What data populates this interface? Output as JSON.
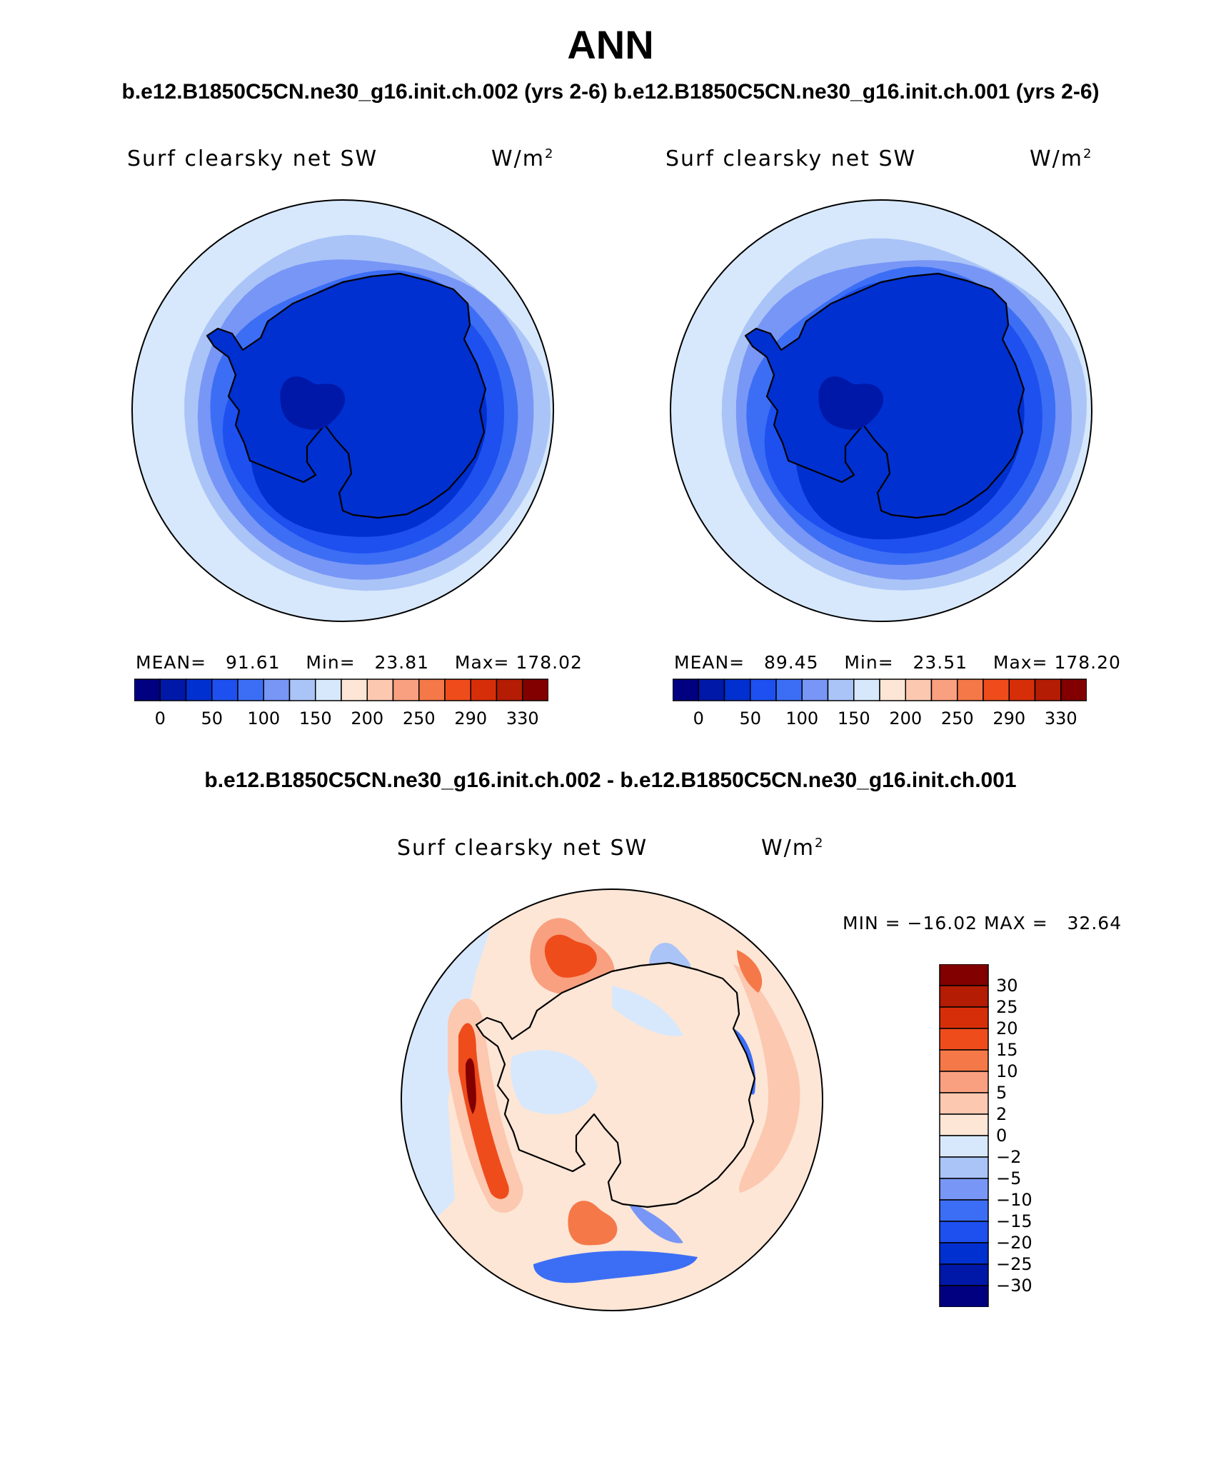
{
  "header": {
    "title": "ANN",
    "case_titles": "b.e12.B1850C5CN.ne30_g16.init.ch.002 (yrs 2-6) b.e12.B1850C5CN.ne30_g16.init.ch.001 (yrs 2-6)",
    "diff_title": "b.e12.B1850C5CN.ne30_g16.init.ch.002 - b.e12.B1850C5CN.ne30_g16.init.ch.001"
  },
  "colors": {
    "abs_scale": [
      "#000080",
      "#0018a8",
      "#0030d0",
      "#1e50f0",
      "#3c6ef5",
      "#7896f5",
      "#aac4f8",
      "#d7e8fc",
      "#fde6d6",
      "#fcc8b0",
      "#f9a080",
      "#f57848",
      "#ef4c1c",
      "#d72e0a",
      "#b41c04",
      "#820000"
    ],
    "diff_scale": [
      "#820000",
      "#b41c04",
      "#d72e0a",
      "#ef4c1c",
      "#f57848",
      "#f9a080",
      "#fcc8b0",
      "#fde6d6",
      "#d7e8fc",
      "#aac4f8",
      "#7896f5",
      "#3c6ef5",
      "#1e50f0",
      "#0030d0",
      "#0018a8",
      "#000080"
    ],
    "land_outline": "#000000"
  },
  "chart_data": [
    {
      "type": "heatmap",
      "projection": "south polar stereographic",
      "title": "Surf clearsky net SW",
      "units_label": "W/m",
      "units_power": "2",
      "case": "b.e12.B1850C5CN.ne30_g16.init.ch.002 (yrs 2-6)",
      "stats": {
        "mean_label": "MEAN=",
        "mean": "91.61",
        "min_label": "Min=",
        "min": "23.81",
        "max_label": "Max=",
        "max": "178.02"
      },
      "colorbar_ticks": [
        "0",
        "50",
        "100",
        "150",
        "200",
        "250",
        "290",
        "330"
      ],
      "contour_levels": [
        0,
        25,
        50,
        75,
        100,
        125,
        150,
        175,
        200,
        225,
        250,
        270,
        290,
        310,
        330
      ],
      "field_rings": [
        {
          "band": 7,
          "value_range": [
            150,
            175
          ]
        },
        {
          "band": 6,
          "value_range": [
            125,
            150
          ]
        },
        {
          "band": 5,
          "value_range": [
            100,
            125
          ]
        },
        {
          "band": 4,
          "value_range": [
            75,
            100
          ]
        },
        {
          "band": 3,
          "value_range": [
            50,
            75
          ]
        },
        {
          "band": 2,
          "value_range": [
            25,
            50
          ]
        }
      ]
    },
    {
      "type": "heatmap",
      "projection": "south polar stereographic",
      "title": "Surf clearsky net SW",
      "units_label": "W/m",
      "units_power": "2",
      "case": "b.e12.B1850C5CN.ne30_g16.init.ch.001 (yrs 2-6)",
      "stats": {
        "mean_label": "MEAN=",
        "mean": "89.45",
        "min_label": "Min=",
        "min": "23.51",
        "max_label": "Max=",
        "max": "178.20"
      },
      "colorbar_ticks": [
        "0",
        "50",
        "100",
        "150",
        "200",
        "250",
        "290",
        "330"
      ],
      "contour_levels": [
        0,
        25,
        50,
        75,
        100,
        125,
        150,
        175,
        200,
        225,
        250,
        270,
        290,
        310,
        330
      ],
      "field_rings": [
        {
          "band": 7,
          "value_range": [
            150,
            175
          ]
        },
        {
          "band": 6,
          "value_range": [
            125,
            150
          ]
        },
        {
          "band": 5,
          "value_range": [
            100,
            125
          ]
        },
        {
          "band": 4,
          "value_range": [
            75,
            100
          ]
        },
        {
          "band": 3,
          "value_range": [
            50,
            75
          ]
        },
        {
          "band": 2,
          "value_range": [
            25,
            50
          ]
        }
      ]
    },
    {
      "type": "heatmap",
      "projection": "south polar stereographic",
      "title": "Surf clearsky net SW",
      "units_label": "W/m",
      "units_power": "2",
      "case": "b.e12.B1850C5CN.ne30_g16.init.ch.002 - b.e12.B1850C5CN.ne30_g16.init.ch.001",
      "stats": {
        "min_label": "MIN =",
        "min": "−16.02",
        "max_label": "MAX =",
        "max": "32.64"
      },
      "colorbar_ticks": [
        "30",
        "25",
        "20",
        "15",
        "10",
        "5",
        "2",
        "0",
        "−2",
        "−5",
        "−10",
        "−15",
        "−20",
        "−25",
        "−30"
      ],
      "contour_levels": [
        30,
        25,
        20,
        15,
        10,
        5,
        2,
        0,
        -2,
        -5,
        -10,
        -15,
        -20,
        -25,
        -30
      ]
    }
  ]
}
